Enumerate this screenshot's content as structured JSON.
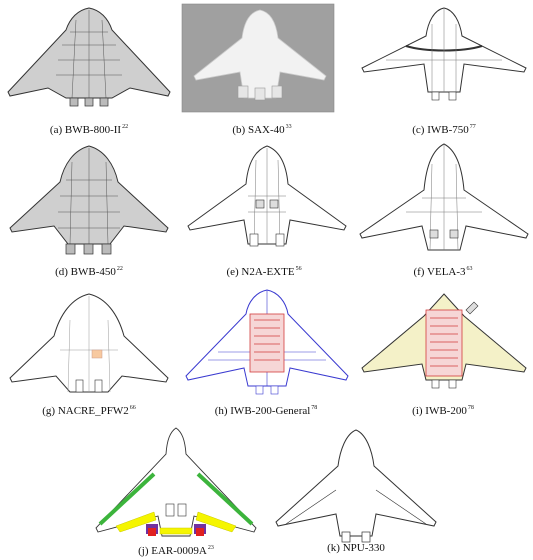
{
  "figure": {
    "panels": [
      {
        "letter": "(a)",
        "name": "BWB-800-II",
        "ref": "22"
      },
      {
        "letter": "(b)",
        "name": "SAX-40",
        "ref": "33"
      },
      {
        "letter": "(c)",
        "name": "IWB-750",
        "ref": "77"
      },
      {
        "letter": "(d)",
        "name": "BWB-450",
        "ref": "22"
      },
      {
        "letter": "(e)",
        "name": "N2A-EXTE",
        "ref": "56"
      },
      {
        "letter": "(f)",
        "name": "VELA-3",
        "ref": "63"
      },
      {
        "letter": "(g)",
        "name": "NACRE_PFW2",
        "ref": "66"
      },
      {
        "letter": "(h)",
        "name": "IWB-200-General",
        "ref": "78"
      },
      {
        "letter": "(i)",
        "name": "IWB-200",
        "ref": "78"
      },
      {
        "letter": "(j)",
        "name": "EAR-0009A",
        "ref": "23"
      },
      {
        "letter": "(k)",
        "name": "NPU-330",
        "ref": ""
      }
    ],
    "colors": {
      "line": "#333333",
      "fill_grey": "#cfcfcf",
      "render_bg": "#a0a0a0",
      "render_body": "#f2f2f2",
      "wire_blue": "#3a3ad0",
      "cabin_red": "#d23c3c",
      "wing_yellow": "#f4f1c8",
      "ear_green": "#3cb43c",
      "ear_yellow": "#f5f500",
      "ear_purple": "#7030a0",
      "ear_red": "#e02020"
    }
  }
}
